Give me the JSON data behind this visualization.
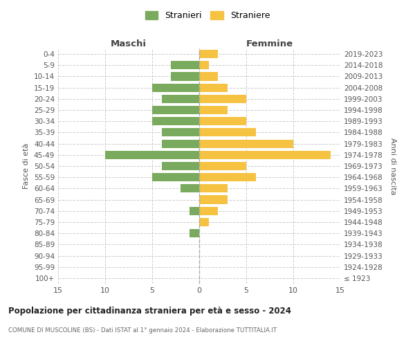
{
  "age_groups": [
    "100+",
    "95-99",
    "90-94",
    "85-89",
    "80-84",
    "75-79",
    "70-74",
    "65-69",
    "60-64",
    "55-59",
    "50-54",
    "45-49",
    "40-44",
    "35-39",
    "30-34",
    "25-29",
    "20-24",
    "15-19",
    "10-14",
    "5-9",
    "0-4"
  ],
  "birth_years": [
    "≤ 1923",
    "1924-1928",
    "1929-1933",
    "1934-1938",
    "1939-1943",
    "1944-1948",
    "1949-1953",
    "1954-1958",
    "1959-1963",
    "1964-1968",
    "1969-1973",
    "1974-1978",
    "1979-1983",
    "1984-1988",
    "1989-1993",
    "1994-1998",
    "1999-2003",
    "2004-2008",
    "2009-2013",
    "2014-2018",
    "2019-2023"
  ],
  "maschi": [
    0,
    0,
    0,
    0,
    1,
    0,
    1,
    0,
    2,
    5,
    4,
    10,
    4,
    4,
    5,
    5,
    4,
    5,
    3,
    3,
    0
  ],
  "femmine": [
    0,
    0,
    0,
    0,
    0,
    1,
    2,
    3,
    3,
    6,
    5,
    14,
    10,
    6,
    5,
    3,
    5,
    3,
    2,
    1,
    2
  ],
  "maschi_color": "#7aaa5d",
  "femmine_color": "#f5c242",
  "background_color": "#ffffff",
  "grid_color": "#cccccc",
  "title": "Popolazione per cittadinanza straniera per età e sesso - 2024",
  "subtitle": "COMUNE DI MUSCOLINE (BS) - Dati ISTAT al 1° gennaio 2024 - Elaborazione TUTTITALIA.IT",
  "xlabel_left": "Maschi",
  "xlabel_right": "Femmine",
  "ylabel_left": "Fasce di età",
  "ylabel_right": "Anni di nascita",
  "legend_stranieri": "Stranieri",
  "legend_straniere": "Straniere",
  "xlim": 15
}
